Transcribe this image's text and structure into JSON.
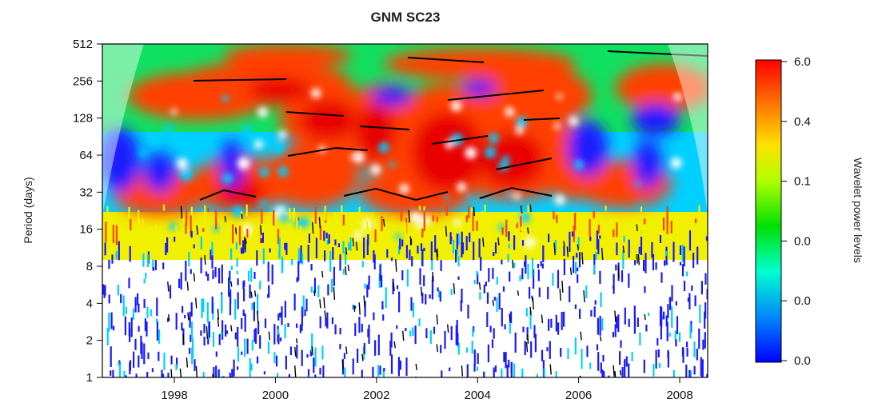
{
  "chart_data": {
    "type": "heatmap",
    "title": "GNM SC23",
    "xlabel": "",
    "ylabel": "Period (days)",
    "x_ticks": [
      "1998",
      "2000",
      "2002",
      "2004",
      "2006",
      "2008"
    ],
    "y_ticks": [
      "1",
      "2",
      "4",
      "8",
      "16",
      "32",
      "64",
      "128",
      "256",
      "512"
    ],
    "y_scale": "log2",
    "ylim": [
      1,
      512
    ],
    "colorbar": {
      "label": "Wavelet power levels",
      "tick_labels": [
        "0.0",
        "0.0",
        "0.0",
        "0.1",
        "0.4",
        "6.0"
      ],
      "colors": [
        "#0000ff",
        "#00a0ff",
        "#00ffc0",
        "#00e000",
        "#c8ff00",
        "#ffe000",
        "#ff8000",
        "#ff0000"
      ]
    },
    "colors": {
      "low": "#1a1aff",
      "mid_low": "#00d0ff",
      "mid": "#10e060",
      "mid_high": "#f0f000",
      "high": "#ff4000",
      "peak": "#e80000",
      "ridge": "#000000",
      "contour": "#ffffff"
    }
  }
}
